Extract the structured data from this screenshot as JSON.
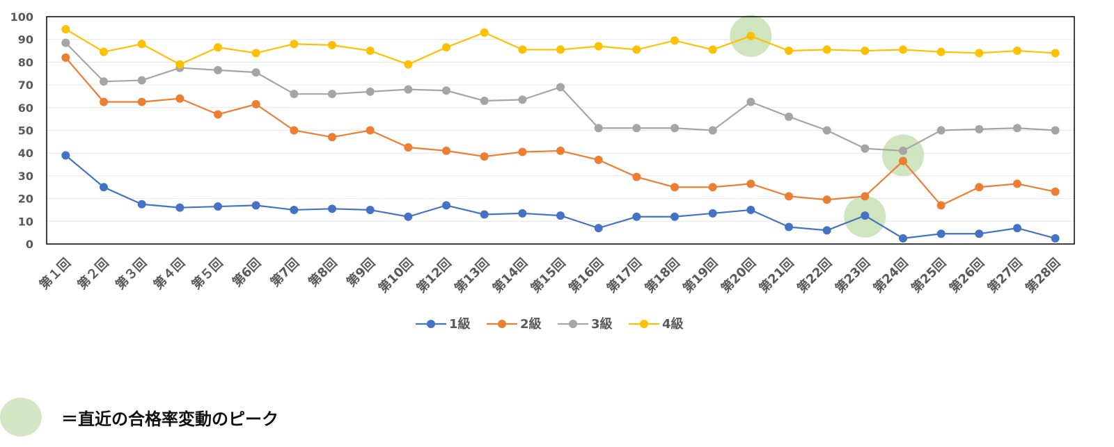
{
  "chart_data": {
    "type": "line",
    "categories": [
      "第１回",
      "第２回",
      "第３回",
      "第４回",
      "第５回",
      "第6回",
      "第7回",
      "第8回",
      "第9回",
      "第10回",
      "第12回",
      "第13回",
      "第14回",
      "第15回",
      "第16回",
      "第17回",
      "第18回",
      "第19回",
      "第20回",
      "第21回",
      "第22回",
      "第23回",
      "第24回",
      "第25回",
      "第26回",
      "第27回",
      "第28回"
    ],
    "series": [
      {
        "name": "1級",
        "color": "#4472c4",
        "values": [
          39,
          25,
          17.5,
          16,
          16.5,
          17,
          15,
          15.5,
          15,
          12,
          17,
          13,
          13.5,
          12.5,
          7,
          12,
          12,
          13.5,
          15,
          7.5,
          6,
          12.5,
          2.5,
          4.5,
          4.5,
          7,
          2.5
        ]
      },
      {
        "name": "2級",
        "color": "#ed7d31",
        "values": [
          82,
          62.5,
          62.5,
          64,
          57,
          61.5,
          50,
          47,
          50,
          42.5,
          41,
          38.5,
          40.5,
          41,
          37,
          29.5,
          25,
          25,
          26.5,
          21,
          19.5,
          21,
          36.5,
          17,
          25,
          26.5,
          23
        ]
      },
      {
        "name": "3級",
        "color": "#a5a5a5",
        "values": [
          88.5,
          71.5,
          72,
          77.5,
          76.5,
          75.5,
          66,
          66,
          67,
          68,
          67.5,
          63,
          63.5,
          69,
          51,
          51,
          51,
          50,
          62.5,
          56,
          50,
          42,
          41,
          50,
          50.5,
          51,
          50
        ]
      },
      {
        "name": "4級",
        "color": "#ffc000",
        "values": [
          94.5,
          84.5,
          88,
          79,
          86.5,
          84,
          88,
          87.5,
          85,
          79,
          86.5,
          93,
          85.5,
          85.5,
          87,
          85.5,
          89.5,
          85.5,
          91.5,
          85,
          85.5,
          85,
          85.5,
          84.5,
          84,
          85,
          84
        ]
      }
    ],
    "ylim": [
      0,
      100
    ],
    "yticks": [
      0,
      10,
      20,
      30,
      40,
      50,
      60,
      70,
      80,
      90,
      100
    ],
    "grid": true,
    "legend_position": "bottom",
    "highlights": [
      {
        "category": "第20回",
        "value": 91.5,
        "color": "#c5e0b4"
      },
      {
        "category": "第23回",
        "value": 12,
        "color": "#c5e0b4"
      },
      {
        "category": "第24回",
        "value": 39,
        "color": "#c5e0b4"
      }
    ]
  },
  "note": {
    "text": "＝直近の合格率変動のピーク",
    "circle_color": "#d3e7c4"
  }
}
